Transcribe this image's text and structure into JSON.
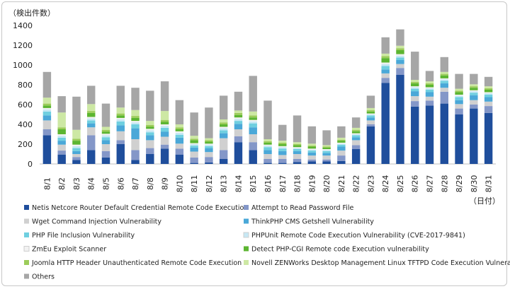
{
  "chart_data": {
    "type": "bar",
    "stacked": true,
    "ylabel": "（検出件数）",
    "xlabel": "（日付）",
    "ylim": [
      0,
      1400
    ],
    "yticks": [
      0,
      200,
      400,
      600,
      800,
      1000,
      1200,
      1400
    ],
    "grid": false,
    "legend_position": "bottom",
    "categories": [
      "8/1",
      "8/2",
      "8/3",
      "8/4",
      "8/5",
      "8/6",
      "8/7",
      "8/8",
      "8/9",
      "8/10",
      "8/11",
      "8/12",
      "8/13",
      "8/14",
      "8/15",
      "8/16",
      "8/17",
      "8/18",
      "8/19",
      "8/20",
      "8/21",
      "8/22",
      "8/23",
      "8/24",
      "8/25",
      "8/26",
      "8/27",
      "8/28",
      "8/29",
      "8/30",
      "8/31"
    ],
    "series": [
      {
        "name": "Netis Netcore Router Default Credential Remote Code Execution",
        "color": "#1f4e9c",
        "values": [
          290,
          95,
          40,
          140,
          65,
          200,
          40,
          100,
          155,
          95,
          10,
          15,
          50,
          220,
          140,
          10,
          10,
          20,
          25,
          25,
          30,
          150,
          380,
          820,
          900,
          580,
          590,
          610,
          500,
          560,
          515
        ]
      },
      {
        "name": "Attempt to Read Password File",
        "color": "#8497c8",
        "values": [
          60,
          40,
          30,
          150,
          65,
          40,
          100,
          60,
          40,
          60,
          55,
          55,
          90,
          60,
          80,
          40,
          40,
          30,
          20,
          20,
          55,
          40,
          20,
          50,
          70,
          55,
          50,
          120,
          60,
          40,
          70
        ]
      },
      {
        "name": "Wget Command Injection Vulnerability",
        "color": "#d0d0d0",
        "values": [
          90,
          60,
          30,
          80,
          70,
          90,
          110,
          80,
          80,
          50,
          60,
          50,
          120,
          70,
          80,
          50,
          40,
          50,
          40,
          40,
          50,
          50,
          40,
          45,
          40,
          50,
          40,
          40,
          45,
          45,
          45
        ]
      },
      {
        "name": "ThinkPHP CMS Getshell Vulnerability",
        "color": "#4aa8d8",
        "values": [
          50,
          40,
          30,
          40,
          40,
          60,
          110,
          50,
          50,
          60,
          40,
          40,
          50,
          55,
          70,
          40,
          40,
          30,
          30,
          25,
          40,
          30,
          30,
          40,
          40,
          50,
          45,
          45,
          40,
          50,
          45
        ]
      },
      {
        "name": "PHP File Inclusion Vulnerability",
        "color": "#6fcfe0",
        "values": [
          40,
          30,
          30,
          30,
          30,
          40,
          40,
          30,
          40,
          30,
          20,
          20,
          30,
          30,
          40,
          30,
          25,
          20,
          20,
          20,
          20,
          20,
          20,
          35,
          25,
          25,
          25,
          25,
          30,
          25,
          25
        ]
      },
      {
        "name": "PHPUnit Remote Code Execution Vulnerability (CVE-2017-9841)",
        "color": "#c6e8f4",
        "values": [
          20,
          20,
          20,
          20,
          20,
          20,
          20,
          20,
          20,
          20,
          15,
          15,
          20,
          20,
          20,
          15,
          15,
          10,
          10,
          10,
          10,
          10,
          10,
          20,
          20,
          15,
          15,
          15,
          15,
          15,
          15
        ]
      },
      {
        "name": "ZmEu Exploit Scanner",
        "color": "#f2f2f2",
        "values": [
          15,
          15,
          15,
          15,
          15,
          15,
          15,
          15,
          15,
          15,
          10,
          10,
          15,
          15,
          15,
          10,
          10,
          10,
          10,
          10,
          10,
          10,
          10,
          15,
          15,
          10,
          10,
          10,
          10,
          10,
          10
        ]
      },
      {
        "name": "Detect PHP-CGI Remote code Execution vulnerability",
        "color": "#5cb531",
        "values": [
          25,
          50,
          40,
          40,
          20,
          25,
          30,
          20,
          25,
          20,
          30,
          20,
          25,
          25,
          25,
          20,
          20,
          20,
          20,
          15,
          20,
          20,
          20,
          45,
          40,
          30,
          25,
          30,
          25,
          25,
          25
        ]
      },
      {
        "name": "Joomla HTTP Header Unauthenticated Remote Code Execution",
        "color": "#9ccc5a",
        "values": [
          20,
          20,
          20,
          20,
          20,
          20,
          20,
          20,
          20,
          20,
          15,
          15,
          20,
          20,
          20,
          15,
          15,
          10,
          10,
          10,
          10,
          15,
          15,
          20,
          20,
          15,
          15,
          15,
          15,
          15,
          15
        ]
      },
      {
        "name": "Novell ZENWorks Desktop Management Linux TFTPD Code Execution Vulnerability",
        "color": "#cde8a4",
        "values": [
          60,
          150,
          90,
          70,
          30,
          60,
          60,
          40,
          90,
          30,
          30,
          20,
          30,
          25,
          40,
          20,
          20,
          20,
          20,
          15,
          20,
          20,
          20,
          25,
          25,
          20,
          20,
          20,
          20,
          20,
          20
        ]
      },
      {
        "name": "Others",
        "color": "#a6a6a6",
        "values": [
          260,
          165,
          335,
          185,
          235,
          220,
          225,
          305,
          300,
          245,
          235,
          310,
          240,
          190,
          360,
          390,
          160,
          270,
          175,
          150,
          115,
          105,
          125,
          165,
          165,
          285,
          105,
          150,
          150,
          105,
          95
        ]
      }
    ]
  }
}
